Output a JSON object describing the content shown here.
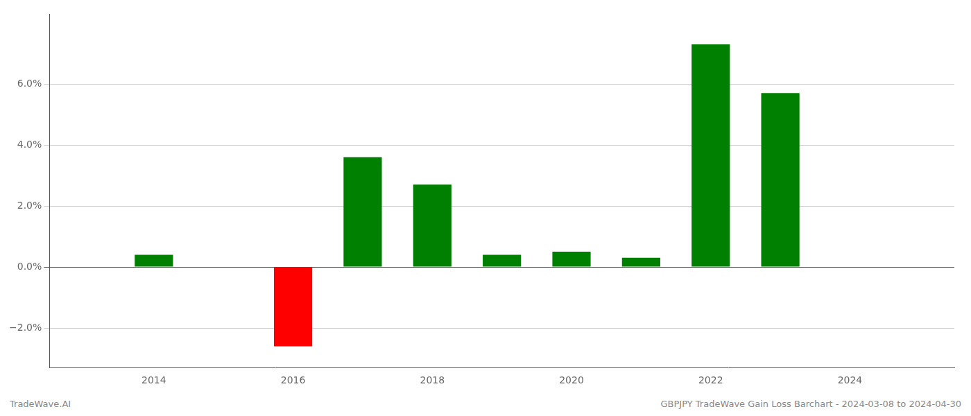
{
  "chart_data": {
    "type": "bar",
    "x": [
      2014,
      2015,
      2016,
      2017,
      2018,
      2019,
      2020,
      2021,
      2022,
      2023
    ],
    "values": [
      0.004,
      0.0,
      -0.026,
      0.036,
      0.027,
      0.004,
      0.005,
      0.003,
      0.073,
      0.057
    ],
    "colors": [
      "#008000",
      "#008000",
      "#ff0000",
      "#008000",
      "#008000",
      "#008000",
      "#008000",
      "#008000",
      "#008000",
      "#008000"
    ],
    "annotations": [
      "TradeWave.AI",
      "GBPJPY TradeWave Gain Loss Barchart - 2024-03-08 to 2024-04-30"
    ],
    "xlim": [
      2012.5,
      2025.5
    ],
    "xticks": [
      2014,
      2016,
      2018,
      2020,
      2022,
      2024
    ],
    "ylim": [
      -0.033,
      0.083
    ],
    "yticks": [
      {
        "value": -0.02,
        "label": "−2.0%"
      },
      {
        "value": 0.0,
        "label": "0.0%"
      },
      {
        "value": 0.02,
        "label": "2.0%"
      },
      {
        "value": 0.04,
        "label": "4.0%"
      },
      {
        "value": 0.06,
        "label": "6.0%"
      }
    ],
    "grid": true
  }
}
